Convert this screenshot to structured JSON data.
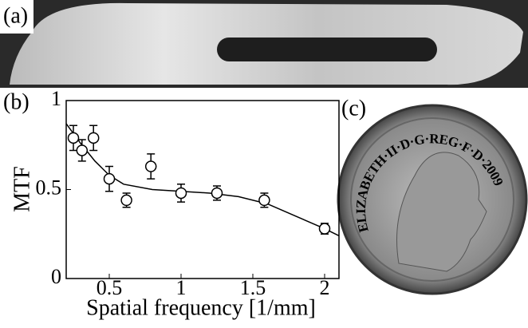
{
  "panels": {
    "a": "(a)",
    "b": "(b)",
    "c": "(c)"
  },
  "coin": {
    "inscription": "ELIZABETH·II·D·G·REG·F·D·2009"
  },
  "chart_data": {
    "type": "scatter",
    "xlabel": "Spatial frequency [1/mm]",
    "ylabel": "MTF",
    "xlim": [
      0.2,
      2.1
    ],
    "ylim": [
      0,
      1
    ],
    "xticks": [
      0.5,
      1,
      1.5,
      2
    ],
    "yticks": [
      0,
      0.5,
      1
    ],
    "color": "#000000",
    "points": {
      "x": [
        0.25,
        0.31,
        0.39,
        0.5,
        0.62,
        0.79,
        1,
        1.25,
        1.58,
        2
      ],
      "values": [
        0.79,
        0.72,
        0.79,
        0.56,
        0.44,
        0.63,
        0.48,
        0.48,
        0.44,
        0.28
      ],
      "errors": [
        0.07,
        0.06,
        0.07,
        0.07,
        0.04,
        0.07,
        0.05,
        0.04,
        0.04,
        0.03
      ]
    },
    "fit": {
      "x": [
        0.2,
        0.3,
        0.4,
        0.5,
        0.6,
        0.8,
        1.0,
        1.2,
        1.4,
        1.6,
        1.8,
        2.0,
        2.1
      ],
      "values": [
        0.87,
        0.76,
        0.66,
        0.58,
        0.53,
        0.5,
        0.49,
        0.48,
        0.46,
        0.42,
        0.35,
        0.28,
        0.24
      ]
    }
  }
}
